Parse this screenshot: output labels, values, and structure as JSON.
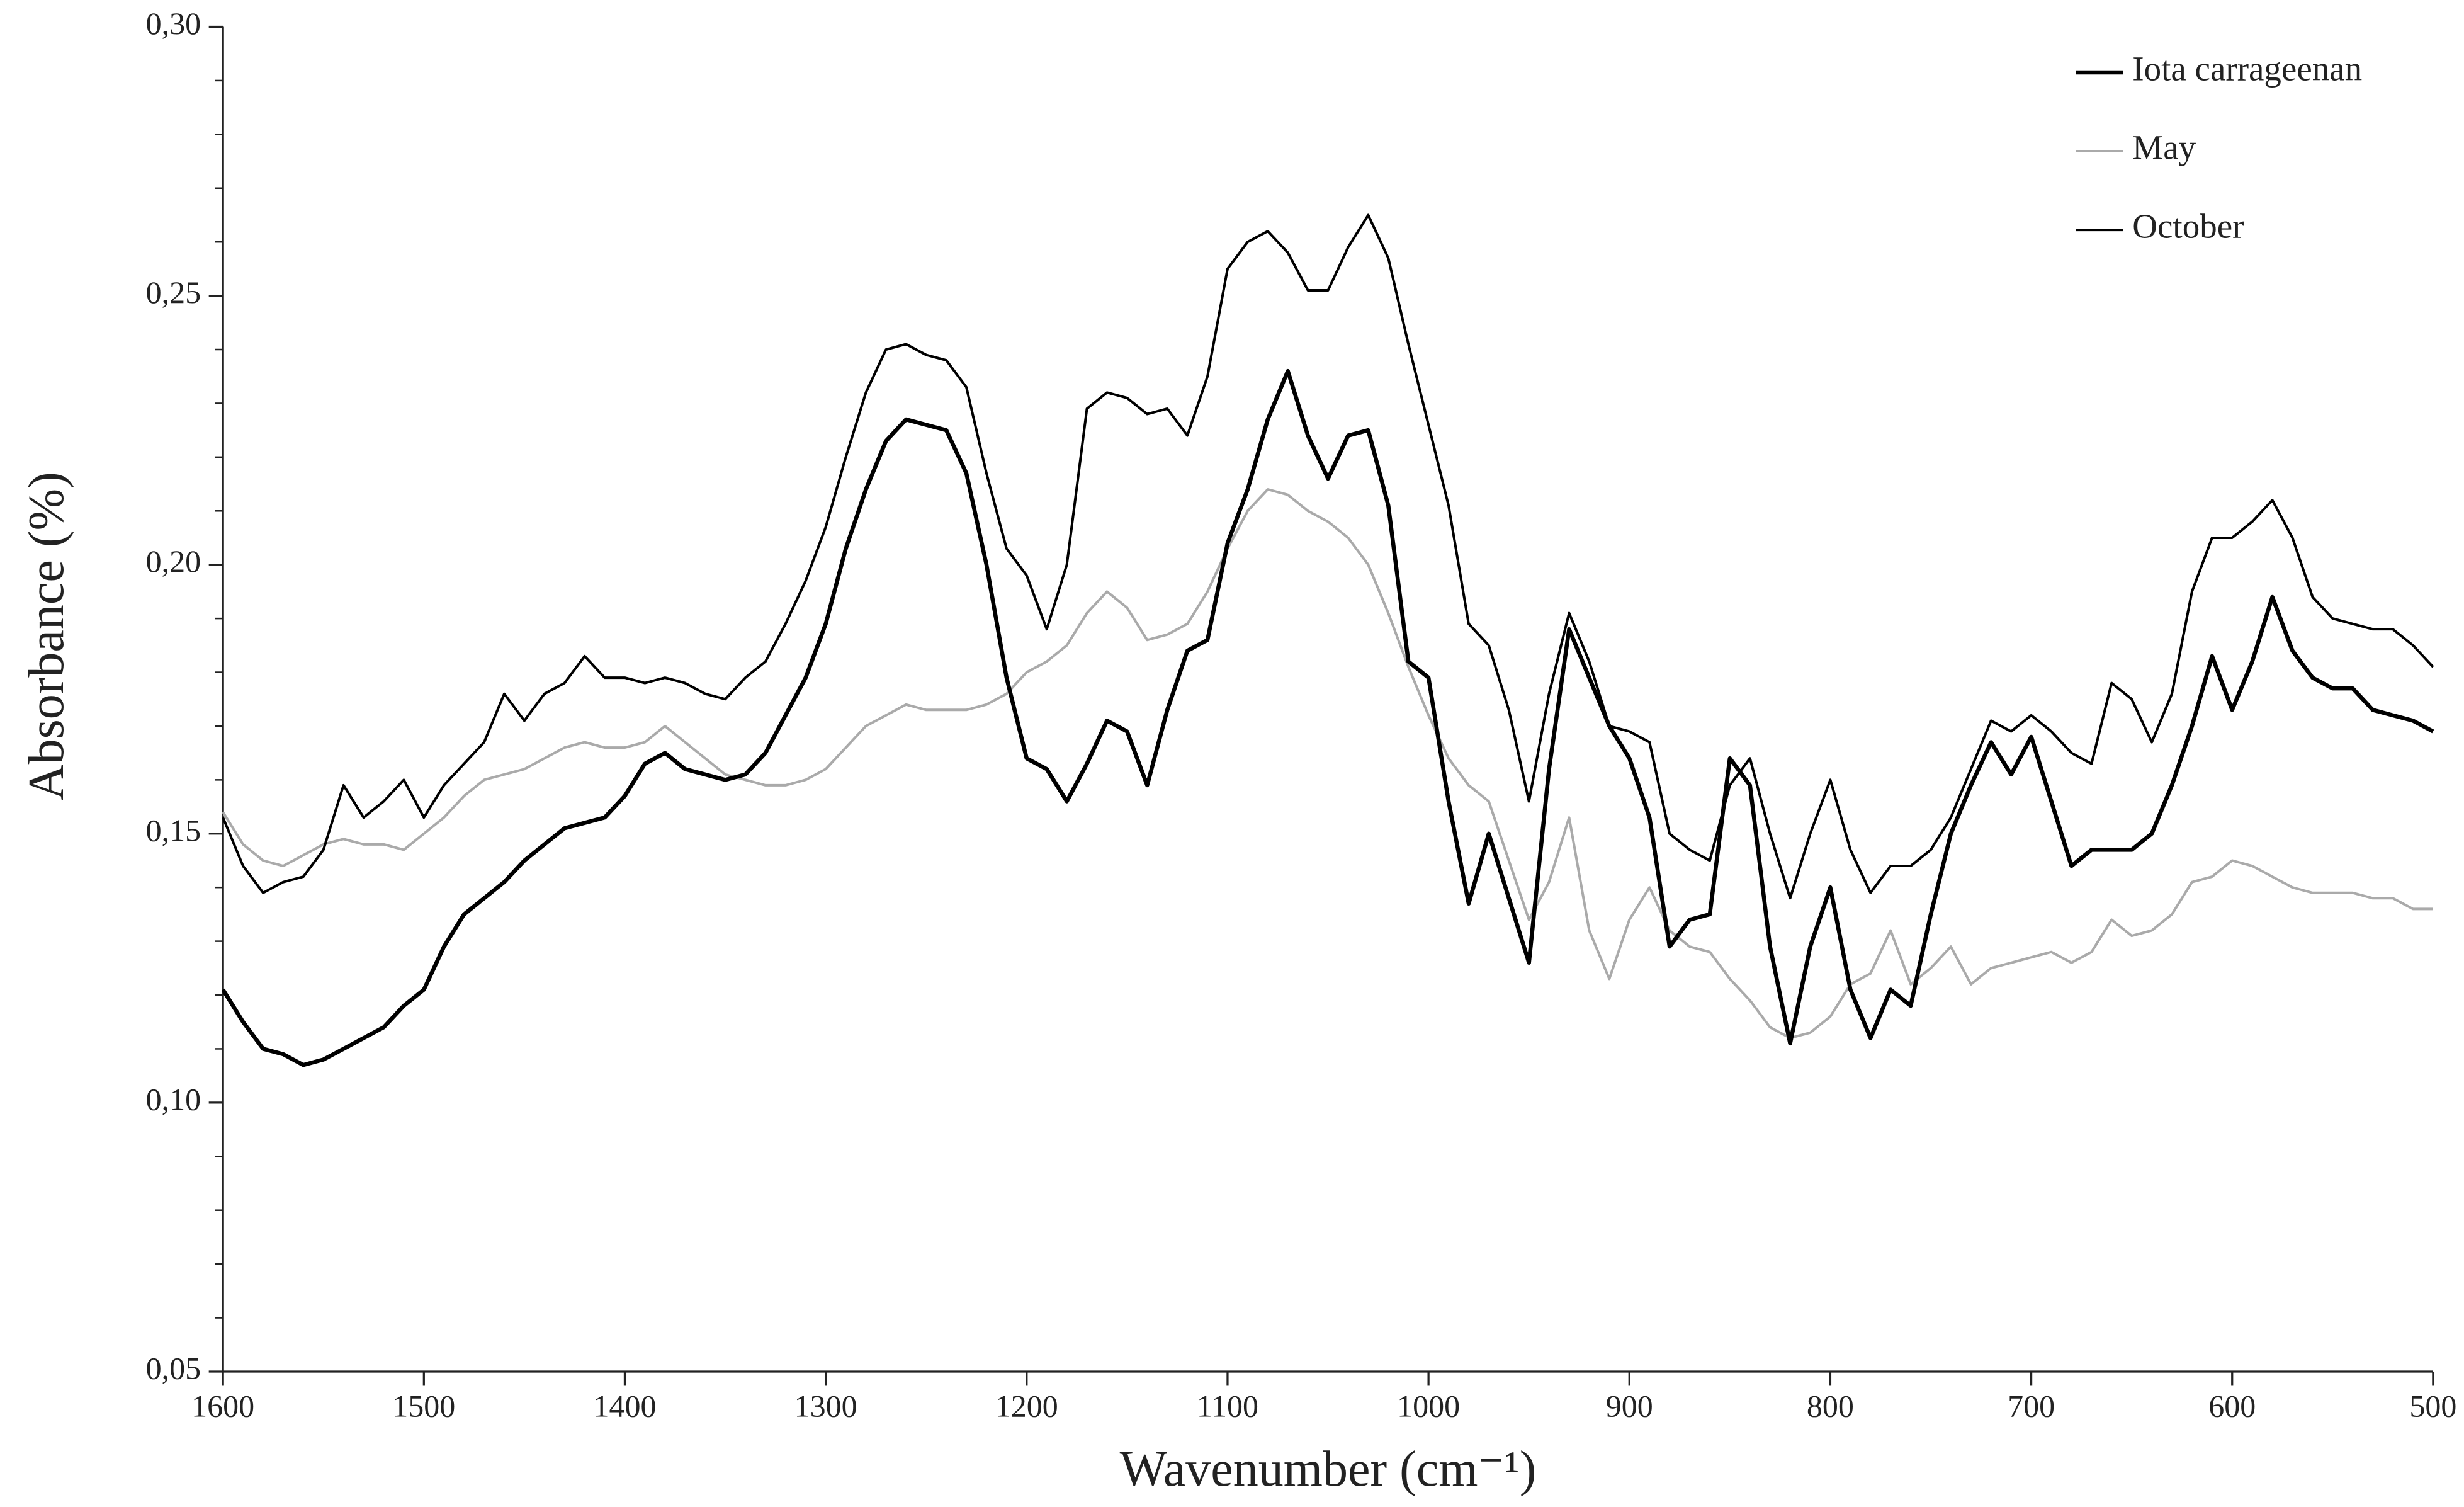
{
  "chart_data": {
    "type": "line",
    "xlabel": "Wavenumber (cm⁻¹)",
    "ylabel": "Absorbance (%)",
    "x": [
      1600,
      1590,
      1580,
      1570,
      1560,
      1550,
      1540,
      1530,
      1520,
      1510,
      1500,
      1490,
      1480,
      1470,
      1460,
      1450,
      1440,
      1430,
      1420,
      1410,
      1400,
      1390,
      1380,
      1370,
      1360,
      1350,
      1340,
      1330,
      1320,
      1310,
      1300,
      1290,
      1280,
      1270,
      1260,
      1250,
      1240,
      1230,
      1220,
      1210,
      1200,
      1190,
      1180,
      1170,
      1160,
      1150,
      1140,
      1130,
      1120,
      1110,
      1100,
      1090,
      1080,
      1070,
      1060,
      1050,
      1040,
      1030,
      1020,
      1010,
      1000,
      990,
      980,
      970,
      960,
      950,
      940,
      930,
      920,
      910,
      900,
      890,
      880,
      870,
      860,
      850,
      840,
      830,
      820,
      810,
      800,
      790,
      780,
      770,
      760,
      750,
      740,
      730,
      720,
      710,
      700,
      690,
      680,
      670,
      660,
      650,
      640,
      630,
      620,
      610,
      600,
      590,
      580,
      570,
      560,
      550,
      540,
      530,
      520,
      510,
      500
    ],
    "series": [
      {
        "name": "Iota carrageenan",
        "color": "#000000",
        "width": 2.6,
        "values": [
          0.121,
          0.115,
          0.11,
          0.109,
          0.107,
          0.108,
          0.11,
          0.112,
          0.114,
          0.118,
          0.121,
          0.129,
          0.135,
          0.138,
          0.141,
          0.145,
          0.148,
          0.151,
          0.152,
          0.153,
          0.157,
          0.163,
          0.165,
          0.162,
          0.161,
          0.16,
          0.161,
          0.165,
          0.172,
          0.179,
          0.189,
          0.203,
          0.214,
          0.223,
          0.227,
          0.226,
          0.225,
          0.217,
          0.2,
          0.179,
          0.164,
          0.162,
          0.156,
          0.163,
          0.171,
          0.169,
          0.159,
          0.173,
          0.184,
          0.186,
          0.204,
          0.214,
          0.227,
          0.236,
          0.224,
          0.216,
          0.224,
          0.225,
          0.211,
          0.182,
          0.179,
          0.156,
          0.137,
          0.15,
          0.138,
          0.126,
          0.162,
          0.188,
          0.179,
          0.17,
          0.164,
          0.153,
          0.129,
          0.134,
          0.135,
          0.164,
          0.159,
          0.129,
          0.111,
          0.129,
          0.14,
          0.121,
          0.112,
          0.121,
          0.118,
          0.135,
          0.15,
          0.159,
          0.167,
          0.161,
          0.168,
          0.156,
          0.144,
          0.147,
          0.147,
          0.147,
          0.15,
          0.159,
          0.17,
          0.183,
          0.173,
          0.182,
          0.194,
          0.184,
          0.179,
          0.177,
          0.177,
          0.173,
          0.172,
          0.171,
          0.169
        ]
      },
      {
        "name": "May",
        "color": "#aaaaaa",
        "width": 1.6,
        "values": [
          0.154,
          0.148,
          0.145,
          0.144,
          0.146,
          0.148,
          0.149,
          0.148,
          0.148,
          0.147,
          0.15,
          0.153,
          0.157,
          0.16,
          0.161,
          0.162,
          0.164,
          0.166,
          0.167,
          0.166,
          0.166,
          0.167,
          0.17,
          0.167,
          0.164,
          0.161,
          0.16,
          0.159,
          0.159,
          0.16,
          0.162,
          0.166,
          0.17,
          0.172,
          0.174,
          0.173,
          0.173,
          0.173,
          0.174,
          0.176,
          0.18,
          0.182,
          0.185,
          0.191,
          0.195,
          0.192,
          0.186,
          0.187,
          0.189,
          0.195,
          0.203,
          0.21,
          0.214,
          0.213,
          0.21,
          0.208,
          0.205,
          0.2,
          0.191,
          0.181,
          0.172,
          0.164,
          0.159,
          0.156,
          0.145,
          0.134,
          0.141,
          0.153,
          0.132,
          0.123,
          0.134,
          0.14,
          0.132,
          0.129,
          0.128,
          0.123,
          0.119,
          0.114,
          0.112,
          0.113,
          0.116,
          0.122,
          0.124,
          0.132,
          0.122,
          0.125,
          0.129,
          0.122,
          0.125,
          0.126,
          0.127,
          0.128,
          0.126,
          0.128,
          0.134,
          0.131,
          0.132,
          0.135,
          0.141,
          0.142,
          0.145,
          0.144,
          0.142,
          0.14,
          0.139,
          0.139,
          0.139,
          0.138,
          0.138,
          0.136,
          0.136
        ]
      },
      {
        "name": "October",
        "color": "#000000",
        "width": 1.6,
        "values": [
          0.153,
          0.144,
          0.139,
          0.141,
          0.142,
          0.147,
          0.159,
          0.153,
          0.156,
          0.16,
          0.153,
          0.159,
          0.163,
          0.167,
          0.176,
          0.171,
          0.176,
          0.178,
          0.183,
          0.179,
          0.179,
          0.178,
          0.179,
          0.178,
          0.176,
          0.175,
          0.179,
          0.182,
          0.189,
          0.197,
          0.207,
          0.22,
          0.232,
          0.24,
          0.241,
          0.239,
          0.238,
          0.233,
          0.217,
          0.203,
          0.198,
          0.188,
          0.2,
          0.229,
          0.232,
          0.231,
          0.228,
          0.229,
          0.224,
          0.235,
          0.255,
          0.26,
          0.262,
          0.258,
          0.251,
          0.251,
          0.259,
          0.265,
          0.257,
          0.241,
          0.226,
          0.211,
          0.189,
          0.185,
          0.173,
          0.156,
          0.176,
          0.191,
          0.182,
          0.17,
          0.169,
          0.167,
          0.15,
          0.147,
          0.145,
          0.159,
          0.164,
          0.15,
          0.138,
          0.15,
          0.16,
          0.147,
          0.139,
          0.144,
          0.144,
          0.147,
          0.153,
          0.162,
          0.171,
          0.169,
          0.172,
          0.169,
          0.165,
          0.163,
          0.178,
          0.175,
          0.167,
          0.176,
          0.195,
          0.205,
          0.205,
          0.208,
          0.212,
          0.205,
          0.194,
          0.19,
          0.189,
          0.188,
          0.188,
          0.185,
          0.181
        ]
      }
    ],
    "xlim": [
      1600,
      500
    ],
    "xticks": [
      1600,
      1500,
      1400,
      1300,
      1200,
      1100,
      1000,
      900,
      800,
      700,
      600,
      500
    ],
    "ylim": [
      0.05,
      0.3
    ],
    "yticks": [
      {
        "value": 0.05,
        "label": "0,05"
      },
      {
        "value": 0.1,
        "label": "0,10"
      },
      {
        "value": 0.15,
        "label": "0,15"
      },
      {
        "value": 0.2,
        "label": "0,20"
      },
      {
        "value": 0.25,
        "label": "0,25"
      },
      {
        "value": 0.3,
        "label": "0,30"
      }
    ],
    "yminorticks": [
      0.06,
      0.07,
      0.08,
      0.09,
      0.11,
      0.12,
      0.13,
      0.14,
      0.16,
      0.17,
      0.18,
      0.19,
      0.21,
      0.22,
      0.23,
      0.24,
      0.26,
      0.27,
      0.28,
      0.29
    ],
    "grid": false,
    "legend": "upper right"
  }
}
